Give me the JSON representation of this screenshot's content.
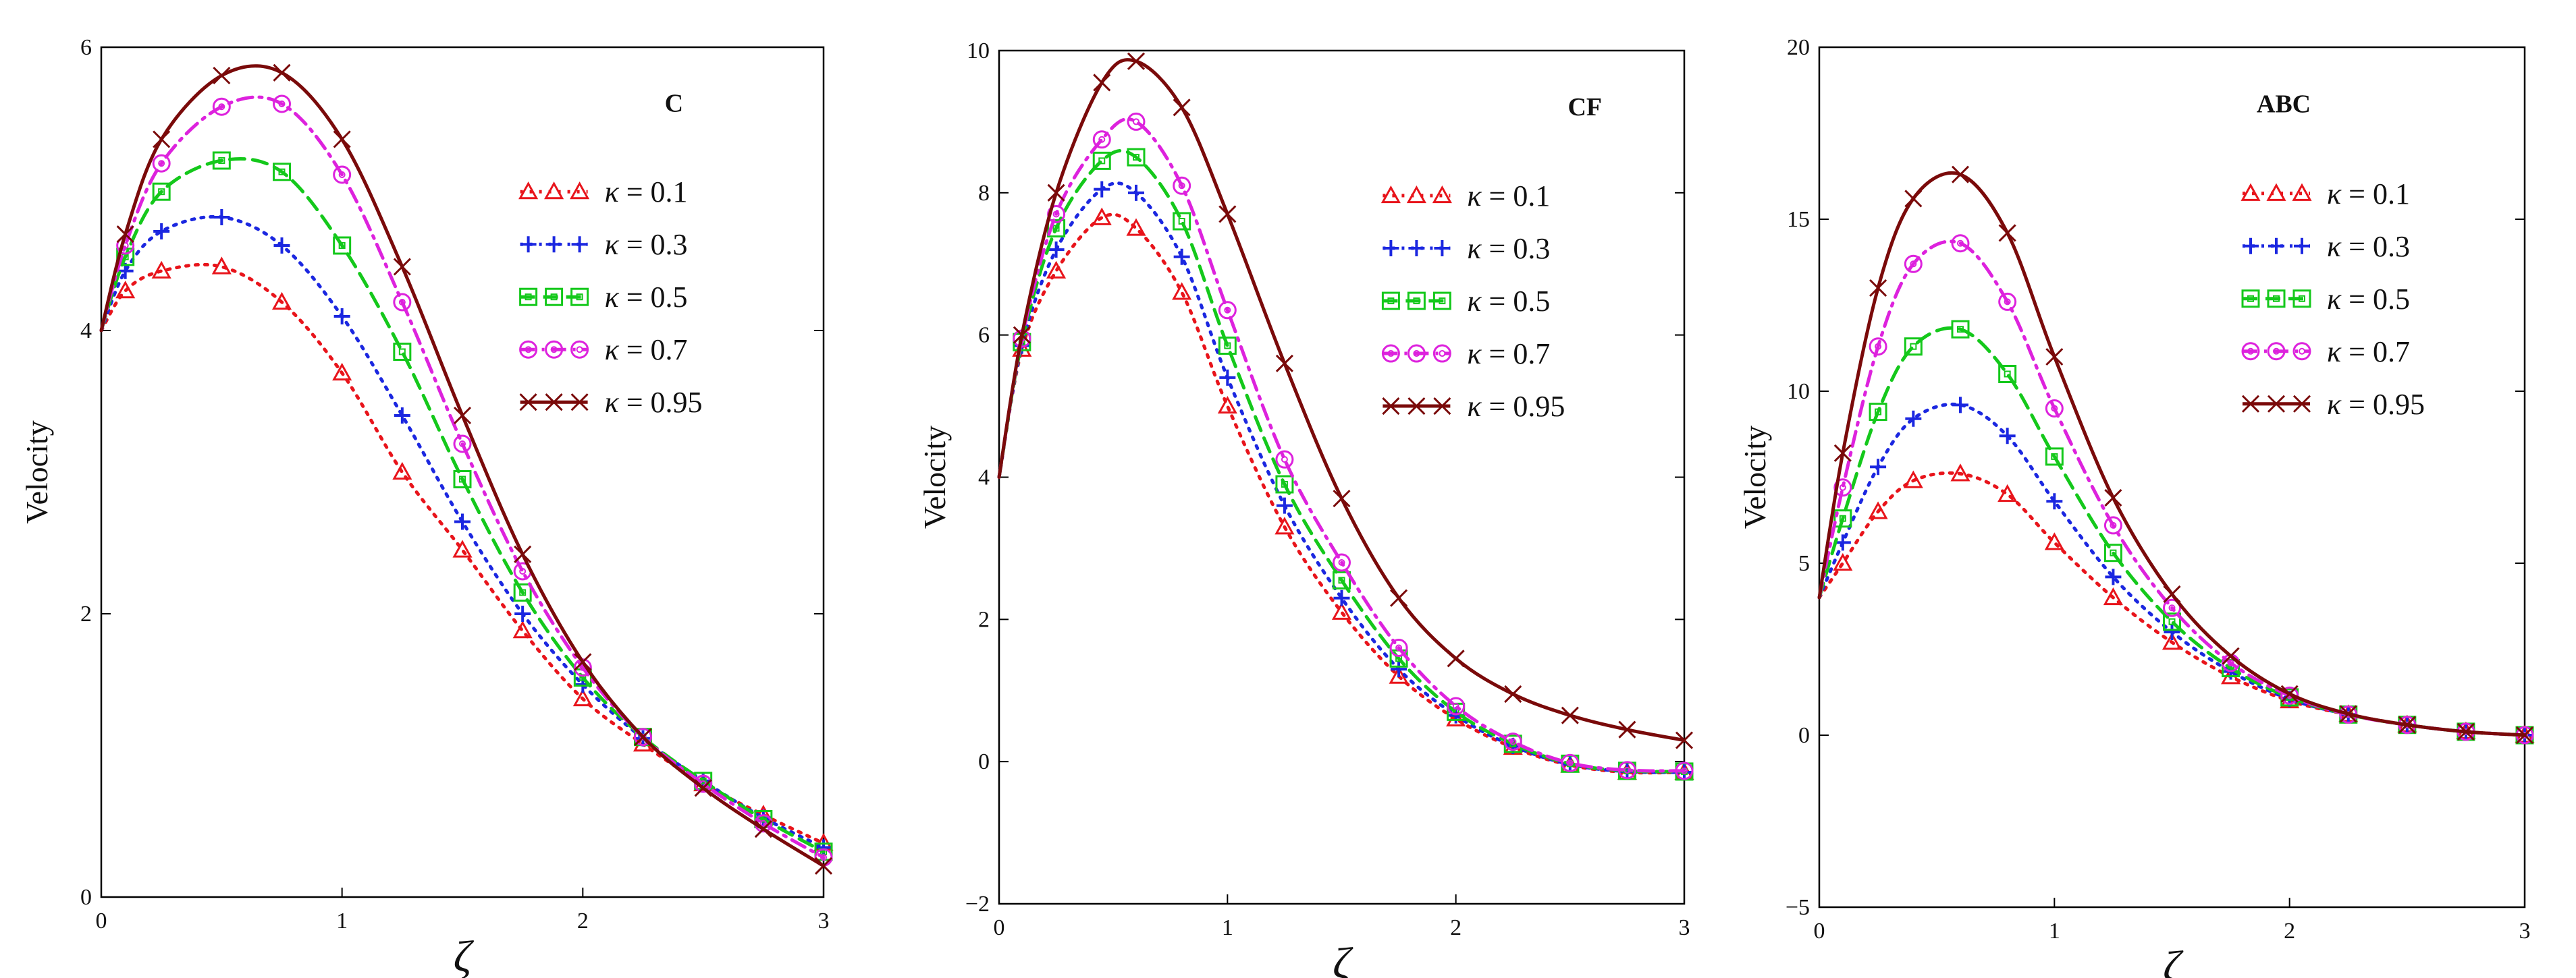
{
  "figure": {
    "ylabel": "Velocity",
    "xlabel": "ζ"
  },
  "series_style": [
    {
      "name": "κ = 0.1",
      "kappa": "0.1",
      "color": "#e8141b",
      "marker": "triangle",
      "dash": "dotted"
    },
    {
      "name": "κ = 0.3",
      "kappa": "0.3",
      "color": "#1b27e0",
      "marker": "plus",
      "dash": "dotted"
    },
    {
      "name": "κ = 0.5",
      "kappa": "0.5",
      "color": "#14c81b",
      "marker": "square",
      "dash": "dashed"
    },
    {
      "name": "κ = 0.7",
      "kappa": "0.7",
      "color": "#dd22dd",
      "marker": "circle",
      "dash": "dashdot"
    },
    {
      "name": "κ = 0.95",
      "kappa": "0.95",
      "color": "#7a0a0a",
      "marker": "cross",
      "dash": "solid"
    }
  ],
  "chart_data": [
    {
      "type": "line",
      "title": "C",
      "xlabel": "ζ",
      "ylabel": "Velocity",
      "xlim": [
        0,
        3
      ],
      "ylim": [
        0,
        6
      ],
      "xticks": [
        0,
        1,
        2,
        3
      ],
      "yticks": [
        0,
        2,
        4,
        6
      ],
      "x": [
        0,
        0.1,
        0.25,
        0.5,
        0.75,
        1.0,
        1.25,
        1.5,
        1.75,
        2.0,
        2.25,
        2.5,
        2.75,
        3.0
      ],
      "series": [
        {
          "name": "κ = 0.1",
          "values": [
            4.0,
            4.28,
            4.42,
            4.45,
            4.2,
            3.7,
            3.0,
            2.45,
            1.88,
            1.4,
            1.08,
            0.8,
            0.58,
            0.38
          ]
        },
        {
          "name": "κ = 0.3",
          "values": [
            4.0,
            4.42,
            4.7,
            4.8,
            4.6,
            4.1,
            3.4,
            2.65,
            2.0,
            1.5,
            1.12,
            0.82,
            0.56,
            0.35
          ]
        },
        {
          "name": "κ = 0.5",
          "values": [
            4.0,
            4.52,
            4.98,
            5.2,
            5.12,
            4.6,
            3.85,
            2.95,
            2.15,
            1.55,
            1.13,
            0.82,
            0.55,
            0.32
          ]
        },
        {
          "name": "κ = 0.7",
          "values": [
            4.0,
            4.6,
            5.18,
            5.58,
            5.6,
            5.1,
            4.2,
            3.2,
            2.3,
            1.62,
            1.13,
            0.8,
            0.52,
            0.28
          ]
        },
        {
          "name": "κ = 0.95",
          "values": [
            4.0,
            4.68,
            5.35,
            5.8,
            5.82,
            5.35,
            4.45,
            3.4,
            2.42,
            1.66,
            1.13,
            0.77,
            0.48,
            0.22
          ]
        }
      ]
    },
    {
      "type": "line",
      "title": "CF",
      "xlabel": "ζ",
      "ylabel": "Velocity",
      "xlim": [
        0,
        3
      ],
      "ylim": [
        -2,
        10
      ],
      "xticks": [
        0,
        1,
        2,
        3
      ],
      "yticks": [
        -2,
        0,
        2,
        4,
        6,
        8,
        10
      ],
      "x": [
        0,
        0.1,
        0.25,
        0.45,
        0.6,
        0.8,
        1.0,
        1.25,
        1.5,
        1.75,
        2.0,
        2.25,
        2.5,
        2.75,
        3.0
      ],
      "series": [
        {
          "name": "κ = 0.1",
          "values": [
            4.0,
            5.8,
            6.9,
            7.65,
            7.5,
            6.6,
            5.0,
            3.3,
            2.1,
            1.2,
            0.6,
            0.2,
            -0.05,
            -0.15,
            -0.15
          ]
        },
        {
          "name": "κ = 0.3",
          "values": [
            4.0,
            5.85,
            7.2,
            8.05,
            8.0,
            7.1,
            5.4,
            3.6,
            2.3,
            1.3,
            0.65,
            0.22,
            -0.04,
            -0.14,
            -0.15
          ]
        },
        {
          "name": "κ = 0.5",
          "values": [
            4.0,
            5.9,
            7.5,
            8.45,
            8.5,
            7.6,
            5.85,
            3.9,
            2.55,
            1.45,
            0.7,
            0.25,
            -0.03,
            -0.13,
            -0.14
          ]
        },
        {
          "name": "κ = 0.7",
          "values": [
            4.0,
            5.95,
            7.7,
            8.75,
            9.0,
            8.1,
            6.35,
            4.25,
            2.8,
            1.6,
            0.78,
            0.28,
            -0.02,
            -0.12,
            -0.13
          ]
        },
        {
          "name": "κ = 0.95",
          "values": [
            4.0,
            6.0,
            8.0,
            9.55,
            9.85,
            9.2,
            7.7,
            5.6,
            3.7,
            2.3,
            1.45,
            0.95,
            0.65,
            0.45,
            0.3
          ]
        }
      ]
    },
    {
      "type": "line",
      "title": "ABC",
      "xlabel": "ζ",
      "ylabel": "Velocity",
      "xlim": [
        0,
        3
      ],
      "ylim": [
        -5,
        20
      ],
      "xticks": [
        0,
        1,
        2,
        3
      ],
      "yticks": [
        -5,
        0,
        5,
        10,
        15,
        20
      ],
      "x": [
        0,
        0.1,
        0.25,
        0.4,
        0.6,
        0.8,
        1.0,
        1.25,
        1.5,
        1.75,
        2.0,
        2.25,
        2.5,
        2.75,
        3.0
      ],
      "series": [
        {
          "name": "κ = 0.1",
          "values": [
            4.0,
            5.0,
            6.5,
            7.4,
            7.6,
            7.0,
            5.6,
            4.0,
            2.7,
            1.7,
            1.0,
            0.6,
            0.3,
            0.1,
            0.0
          ]
        },
        {
          "name": "κ = 0.3",
          "values": [
            4.0,
            5.6,
            7.8,
            9.2,
            9.6,
            8.7,
            6.8,
            4.6,
            3.0,
            1.85,
            1.05,
            0.6,
            0.3,
            0.1,
            0.0
          ]
        },
        {
          "name": "κ = 0.5",
          "values": [
            4.0,
            6.3,
            9.4,
            11.3,
            11.8,
            10.5,
            8.1,
            5.3,
            3.3,
            1.95,
            1.1,
            0.6,
            0.3,
            0.1,
            0.0
          ]
        },
        {
          "name": "κ = 0.7",
          "values": [
            4.0,
            7.2,
            11.3,
            13.7,
            14.3,
            12.6,
            9.5,
            6.1,
            3.7,
            2.1,
            1.15,
            0.6,
            0.3,
            0.1,
            0.0
          ]
        },
        {
          "name": "κ = 0.95",
          "values": [
            4.0,
            8.2,
            13.0,
            15.6,
            16.3,
            14.6,
            11.0,
            6.9,
            4.1,
            2.3,
            1.2,
            0.62,
            0.3,
            0.1,
            0.0
          ]
        }
      ]
    }
  ]
}
